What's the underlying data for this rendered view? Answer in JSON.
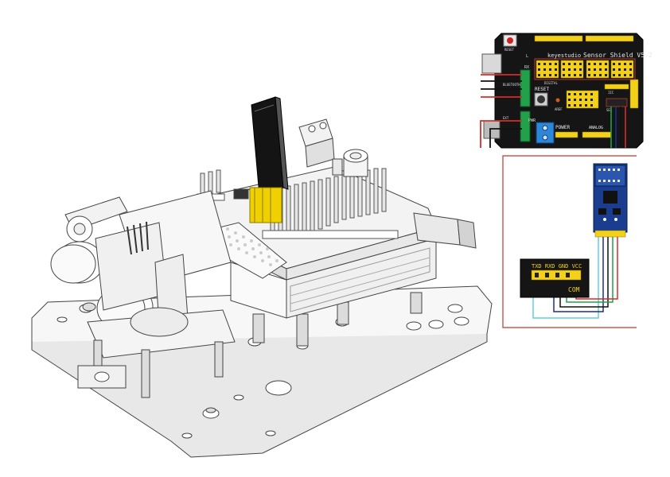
{
  "colors": {
    "board_black": "#151515",
    "header_yellow": "#f3d11a",
    "wire_red": "#d92b2b",
    "wire_black": "#111111",
    "wire_green": "#21a04a",
    "wire_navy": "#1b2f8a",
    "wire_cyan": "#5fd0d8",
    "terminal_blue": "#2e86d6",
    "module_navy": "#1b3d8f",
    "frame_red": "#c0392b"
  },
  "shield": {
    "brand": "keyestudio",
    "title": "Sensor Shield V5.2",
    "reset_small": "RESET",
    "reset_label": "RESET",
    "power_label": "POWER",
    "analog_label": "ANALOG",
    "pwr_label": "PWR",
    "digital_label": "DIGITAL",
    "bt_label": "BLUETOOTH",
    "iic_label": "IIC",
    "sel_label": "SEL",
    "led_label": "L",
    "rx_label": "RX",
    "tx_label": "TX",
    "ext_label": "EXT",
    "ref_label": "AREF"
  },
  "module": {
    "pins_label": "TXD RXD GND VCC",
    "com_label": "COM"
  }
}
